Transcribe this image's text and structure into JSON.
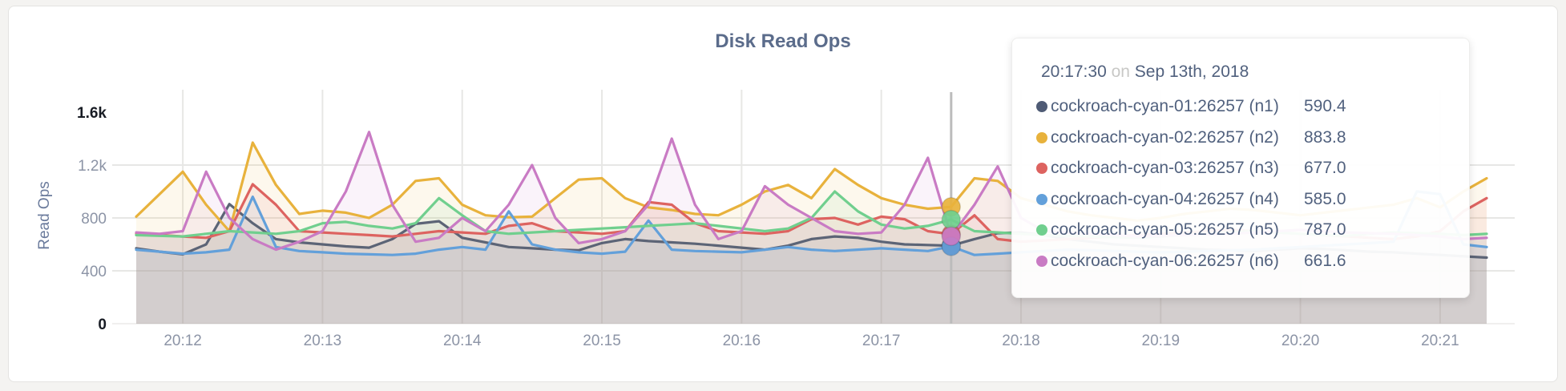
{
  "page": {
    "background": "#f4f3f1"
  },
  "chart_data": {
    "type": "line",
    "title": "Disk Read Ops",
    "xlabel": "",
    "ylabel": "Read Ops",
    "ylim": [
      0,
      1600
    ],
    "ytick_values": [
      0,
      400,
      800,
      1200,
      1600
    ],
    "ytick_labels": [
      "0",
      "400",
      "800",
      "1.2k",
      "1.6k"
    ],
    "x_start_time": "20:11:40",
    "x_step_seconds": 10,
    "xtick_labels": [
      "20:12",
      "20:13",
      "20:14",
      "20:15",
      "20:16",
      "20:17",
      "20:18",
      "20:19",
      "20:20",
      "20:21"
    ],
    "xtick_first_index": 2,
    "xtick_index_step": 6,
    "grid": true,
    "legend_position": "tooltip",
    "series": [
      {
        "name": "cockroach-cyan-01:26257 (n1)",
        "color": "#5c6476",
        "values": [
          570,
          545,
          525,
          600,
          905,
          760,
          640,
          615,
          600,
          585,
          575,
          640,
          755,
          775,
          650,
          615,
          580,
          570,
          560,
          555,
          610,
          640,
          625,
          615,
          605,
          590,
          575,
          560,
          590,
          640,
          660,
          650,
          620,
          600,
          595,
          590.4,
          640,
          685,
          690,
          670,
          640,
          620,
          600,
          590,
          580,
          570,
          560,
          555,
          550,
          560,
          570,
          565,
          555,
          545,
          540,
          530,
          520,
          510,
          500
        ]
      },
      {
        "name": "cockroach-cyan-02:26257 (n2)",
        "color": "#e8b23c",
        "values": [
          810,
          980,
          1150,
          900,
          700,
          1370,
          1050,
          830,
          855,
          840,
          800,
          900,
          1080,
          1100,
          900,
          820,
          805,
          810,
          950,
          1090,
          1100,
          950,
          880,
          860,
          830,
          820,
          900,
          1000,
          1050,
          950,
          1170,
          1050,
          950,
          900,
          870,
          883.8,
          1100,
          1080,
          950,
          900,
          850,
          820,
          800,
          780,
          800,
          830,
          850,
          870,
          860,
          840,
          820,
          840,
          860,
          880,
          900,
          950,
          880,
          1000,
          1100
        ]
      },
      {
        "name": "cockroach-cyan-03:26257 (n3)",
        "color": "#dd6360",
        "values": [
          680,
          670,
          660,
          650,
          700,
          1055,
          900,
          700,
          690,
          680,
          670,
          660,
          680,
          700,
          690,
          680,
          740,
          760,
          700,
          690,
          680,
          700,
          920,
          900,
          760,
          700,
          690,
          680,
          700,
          790,
          800,
          750,
          810,
          790,
          700,
          677.0,
          820,
          640,
          620,
          630,
          640,
          650,
          660,
          670,
          680,
          690,
          700,
          710,
          700,
          690,
          680,
          670,
          660,
          650,
          640,
          660,
          700,
          850,
          950
        ]
      },
      {
        "name": "cockroach-cyan-04:26257 (n4)",
        "color": "#63a0da",
        "values": [
          560,
          545,
          530,
          540,
          560,
          960,
          580,
          550,
          540,
          530,
          525,
          520,
          530,
          560,
          580,
          560,
          850,
          600,
          560,
          540,
          530,
          545,
          780,
          560,
          550,
          545,
          540,
          560,
          580,
          560,
          550,
          560,
          570,
          560,
          550,
          585.0,
          520,
          530,
          540,
          550,
          560,
          555,
          550,
          545,
          540,
          545,
          550,
          555,
          560,
          570,
          580,
          590,
          600,
          610,
          620,
          1000,
          980,
          600,
          580
        ]
      },
      {
        "name": "cockroach-cyan-05:26257 (n5)",
        "color": "#70cf8e",
        "values": [
          670,
          665,
          660,
          680,
          700,
          690,
          680,
          700,
          760,
          770,
          740,
          720,
          760,
          950,
          820,
          700,
          680,
          690,
          700,
          710,
          720,
          730,
          740,
          750,
          760,
          740,
          720,
          700,
          720,
          800,
          1000,
          850,
          750,
          720,
          740,
          787.0,
          700,
          690,
          680,
          670,
          665,
          660,
          655,
          650,
          660,
          670,
          680,
          690,
          700,
          690,
          680,
          670,
          665,
          680,
          690,
          685,
          680,
          670,
          680
        ]
      },
      {
        "name": "cockroach-cyan-06:26257 (n6)",
        "color": "#c97bc4",
        "values": [
          690,
          680,
          700,
          1150,
          800,
          640,
          560,
          620,
          700,
          1000,
          1450,
          900,
          620,
          650,
          800,
          700,
          900,
          1200,
          800,
          610,
          640,
          700,
          900,
          1400,
          900,
          640,
          700,
          1040,
          900,
          800,
          700,
          680,
          690,
          900,
          1255,
          661.6,
          900,
          1190,
          800,
          700,
          690,
          680,
          670,
          660,
          665,
          670,
          675,
          680,
          690,
          700,
          710,
          700,
          690,
          685,
          680,
          670,
          660,
          640,
          650
        ]
      }
    ]
  },
  "tooltip": {
    "time": "20:17:30",
    "separator": "on",
    "date": "Sep 13th, 2018",
    "crosshair_index": 35,
    "rows": [
      {
        "label": "cockroach-cyan-01:26257 (n1)",
        "value": "590.4",
        "color": "#4f5b75"
      },
      {
        "label": "cockroach-cyan-02:26257 (n2)",
        "value": "883.8",
        "color": "#e8b23c"
      },
      {
        "label": "cockroach-cyan-03:26257 (n3)",
        "value": "677.0",
        "color": "#dd6360"
      },
      {
        "label": "cockroach-cyan-04:26257 (n4)",
        "value": "585.0",
        "color": "#63a0da"
      },
      {
        "label": "cockroach-cyan-05:26257 (n5)",
        "value": "787.0",
        "color": "#70cf8e"
      },
      {
        "label": "cockroach-cyan-06:26257 (n6)",
        "value": "661.6",
        "color": "#c97bc4"
      }
    ]
  },
  "colors": {
    "grid": "#e7e7e5",
    "crosshair": "#bcbcbc",
    "title": "#5b6c8b",
    "axis_label": "#6b7b9c",
    "tick": "#8c94a6",
    "tick_maxmin": "#181c24"
  }
}
